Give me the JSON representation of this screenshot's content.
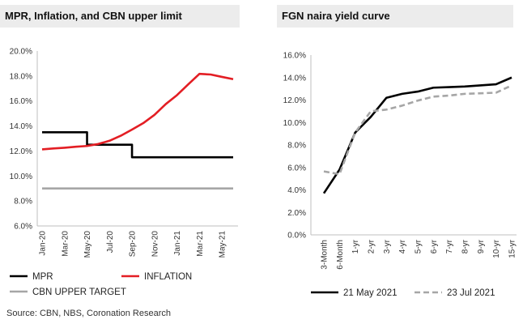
{
  "chart_data": [
    {
      "type": "line",
      "title": "MPR, Inflation, and CBN upper limit",
      "x": [
        "Jan-20",
        "Feb-20",
        "Mar-20",
        "Apr-20",
        "May-20",
        "Jun-20",
        "Jul-20",
        "Aug-20",
        "Sep-20",
        "Oct-20",
        "Nov-20",
        "Dec-20",
        "Jan-21",
        "Feb-21",
        "Mar-21",
        "Apr-21",
        "May-21",
        "Jun-21"
      ],
      "x_tick_labels": [
        "Jan-20",
        "Mar-20",
        "May-20",
        "Jul-20",
        "Sep-20",
        "Nov-20",
        "Jan-21",
        "Mar-21",
        "May-21"
      ],
      "y_tick_labels": [
        "6.0%",
        "8.0%",
        "10.0%",
        "12.0%",
        "14.0%",
        "16.0%",
        "18.0%",
        "20.0%"
      ],
      "ylim": [
        6,
        20
      ],
      "series": [
        {
          "name": "MPR",
          "color": "#000000",
          "step": true,
          "values": [
            13.5,
            13.5,
            13.5,
            13.5,
            12.5,
            12.5,
            12.5,
            12.5,
            11.5,
            11.5,
            11.5,
            11.5,
            11.5,
            11.5,
            11.5,
            11.5,
            11.5,
            11.5
          ]
        },
        {
          "name": "INFLATION",
          "color": "#e31e24",
          "values": [
            12.13,
            12.2,
            12.26,
            12.34,
            12.4,
            12.56,
            12.82,
            13.22,
            13.71,
            14.23,
            14.89,
            15.75,
            16.47,
            17.33,
            18.17,
            18.12,
            17.93,
            17.75
          ]
        },
        {
          "name": "CBN UPPER TARGET",
          "color": "#a6a6a6",
          "values": [
            9,
            9,
            9,
            9,
            9,
            9,
            9,
            9,
            9,
            9,
            9,
            9,
            9,
            9,
            9,
            9,
            9,
            9
          ]
        }
      ],
      "legend_position": "bottom"
    },
    {
      "type": "line",
      "title": "FGN naira yield curve",
      "categories": [
        "3-Month",
        "6-Month",
        "1-yr",
        "2-yr",
        "3-yr",
        "4-yr",
        "5-yr",
        "6-yr",
        "7-yr",
        "8-yr",
        "9-yr",
        "10-yr",
        "15-yr"
      ],
      "y_tick_labels": [
        "0.0%",
        "2.0%",
        "4.0%",
        "6.0%",
        "8.0%",
        "10.0%",
        "12.0%",
        "14.0%",
        "16.0%"
      ],
      "ylim": [
        0,
        16
      ],
      "series": [
        {
          "name": "21 May 2021",
          "color": "#000000",
          "dash": "solid",
          "values": [
            3.7,
            5.8,
            9.1,
            10.5,
            12.2,
            12.55,
            12.75,
            13.1,
            13.15,
            13.2,
            13.3,
            13.4,
            14.0
          ]
        },
        {
          "name": "23 Jul 2021",
          "color": "#a6a6a6",
          "dash": "dashed",
          "values": [
            5.65,
            5.4,
            9.1,
            11.0,
            11.15,
            11.5,
            11.95,
            12.3,
            12.4,
            12.55,
            12.6,
            12.65,
            13.3
          ]
        }
      ],
      "legend_position": "bottom"
    }
  ],
  "source": "Source: CBN, NBS, Coronation Research"
}
